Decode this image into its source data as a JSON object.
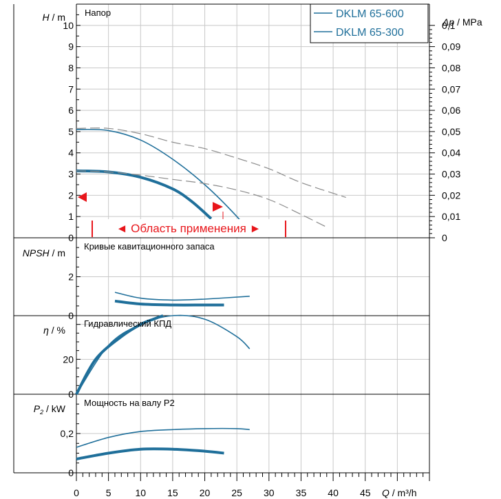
{
  "colors": {
    "pump_600": "#1f6f9a",
    "pump_300": "#1f6f9a",
    "dashed": "#8a8a8a",
    "range": "#e8161b",
    "grid": "#c8c8c8",
    "axis": "#000000"
  },
  "x_axis": {
    "label_var": "Q",
    "label_unit": " / m³/h",
    "ticks": [
      "0",
      "5",
      "10",
      "15",
      "20",
      "25",
      "30",
      "35",
      "40",
      "45"
    ]
  },
  "panels": {
    "head": {
      "title": "Напор",
      "y_label_var": "H",
      "y_label_unit": " / m",
      "y_ticks": [
        "0",
        "1",
        "2",
        "3",
        "4",
        "5",
        "6",
        "7",
        "8",
        "9",
        "10"
      ],
      "right_label_var": "Δp",
      "right_label_unit": " / MPa",
      "right_ticks": [
        "0",
        "0,01",
        "0,02",
        "0,03",
        "0,04",
        "0,05",
        "0,06",
        "0,07",
        "0,08",
        "0,09",
        "0,1"
      ],
      "range_label": "◄ Область применения ►"
    },
    "npsh": {
      "title": "Кривые кавитационного запаса",
      "y_label_var": "NPSH",
      "y_label_unit": " / m",
      "y_ticks": [
        "0",
        "2"
      ]
    },
    "eff": {
      "title": "Гидравлический КПД",
      "y_label_var": "η",
      "y_label_unit": " / %",
      "y_ticks": [
        "0",
        "20"
      ]
    },
    "power": {
      "title": "Мощность на валу P2",
      "y_label_var": "P",
      "y_label_sub": "2",
      "y_label_unit": " / kW",
      "y_ticks": [
        "0",
        "0,2"
      ]
    }
  },
  "legend": [
    {
      "name": "DKLM 65-600"
    },
    {
      "name": "DKLM 65-300"
    }
  ],
  "chart_data": [
    {
      "type": "line",
      "title": "Напор",
      "xlabel": "Q / m³/h",
      "ylabel": "H / m",
      "y2label": "Δp / MPa",
      "xlim": [
        0,
        55
      ],
      "ylim": [
        0,
        11
      ],
      "y2lim": [
        0,
        0.11
      ],
      "grid": true,
      "legend_position": "top-right",
      "series": [
        {
          "name": "DKLM 65-600",
          "style": "solid-thin",
          "x": [
            0,
            5,
            10,
            15,
            20,
            25,
            27.5
          ],
          "y": [
            5.1,
            5.05,
            4.6,
            3.7,
            2.5,
            1.0,
            0.05
          ]
        },
        {
          "name": "DKLM 65-300",
          "style": "solid-thick",
          "x": [
            0,
            5,
            10,
            15,
            18,
            21
          ],
          "y": [
            3.15,
            3.1,
            2.85,
            2.3,
            1.7,
            0.9
          ]
        },
        {
          "style": "dashed",
          "x": [
            0,
            5,
            10,
            15,
            20,
            25,
            30,
            35,
            42
          ],
          "y": [
            5.15,
            5.15,
            4.9,
            4.5,
            4.2,
            3.75,
            3.25,
            2.6,
            1.9
          ]
        },
        {
          "style": "dashed",
          "x": [
            0,
            5,
            10,
            15,
            20,
            25,
            30,
            35,
            39
          ],
          "y": [
            3.15,
            3.1,
            2.95,
            2.75,
            2.55,
            2.25,
            1.8,
            1.1,
            0.5
          ]
        }
      ],
      "operating_range_q": [
        1.3,
        32.8
      ]
    },
    {
      "type": "line",
      "title": "Кривые кавитационного запаса",
      "ylabel": "NPSH / m",
      "xlim": [
        0,
        55
      ],
      "ylim": [
        0,
        4
      ],
      "grid": true,
      "series": [
        {
          "name": "DKLM 65-600",
          "style": "solid-thin",
          "x": [
            6,
            10,
            15,
            20,
            27
          ],
          "y": [
            1.2,
            0.9,
            0.8,
            0.85,
            1.0
          ]
        },
        {
          "name": "DKLM 65-300",
          "style": "solid-thick",
          "x": [
            6,
            10,
            15,
            20,
            23
          ],
          "y": [
            0.75,
            0.6,
            0.55,
            0.55,
            0.55
          ]
        }
      ]
    },
    {
      "type": "line",
      "title": "Гидравлический КПД",
      "ylabel": "η / %",
      "xlim": [
        0,
        55
      ],
      "ylim": [
        0,
        45
      ],
      "grid": true,
      "series": [
        {
          "name": "DKLM 65-600",
          "style": "solid-thin",
          "x": [
            0,
            5,
            10,
            15,
            20,
            25,
            27
          ],
          "y": [
            0,
            28,
            40,
            45,
            43,
            33,
            26
          ]
        },
        {
          "name": "DKLM 65-300",
          "style": "solid-thick",
          "x": [
            0,
            3,
            7,
            10,
            12,
            13.5
          ],
          "y": [
            0,
            20,
            33,
            40,
            43,
            45
          ]
        }
      ]
    },
    {
      "type": "line",
      "title": "Мощность на валу P2",
      "ylabel": "P2 / kW",
      "xlim": [
        0,
        55
      ],
      "ylim": [
        0,
        0.4
      ],
      "grid": true,
      "series": [
        {
          "name": "DKLM 65-600",
          "style": "solid-thin",
          "x": [
            0,
            5,
            10,
            15,
            20,
            25,
            27
          ],
          "y": [
            0.13,
            0.18,
            0.21,
            0.22,
            0.225,
            0.225,
            0.22
          ]
        },
        {
          "name": "DKLM 65-300",
          "style": "solid-thick",
          "x": [
            0,
            5,
            10,
            15,
            20,
            23
          ],
          "y": [
            0.07,
            0.1,
            0.12,
            0.12,
            0.11,
            0.1
          ]
        }
      ]
    }
  ]
}
